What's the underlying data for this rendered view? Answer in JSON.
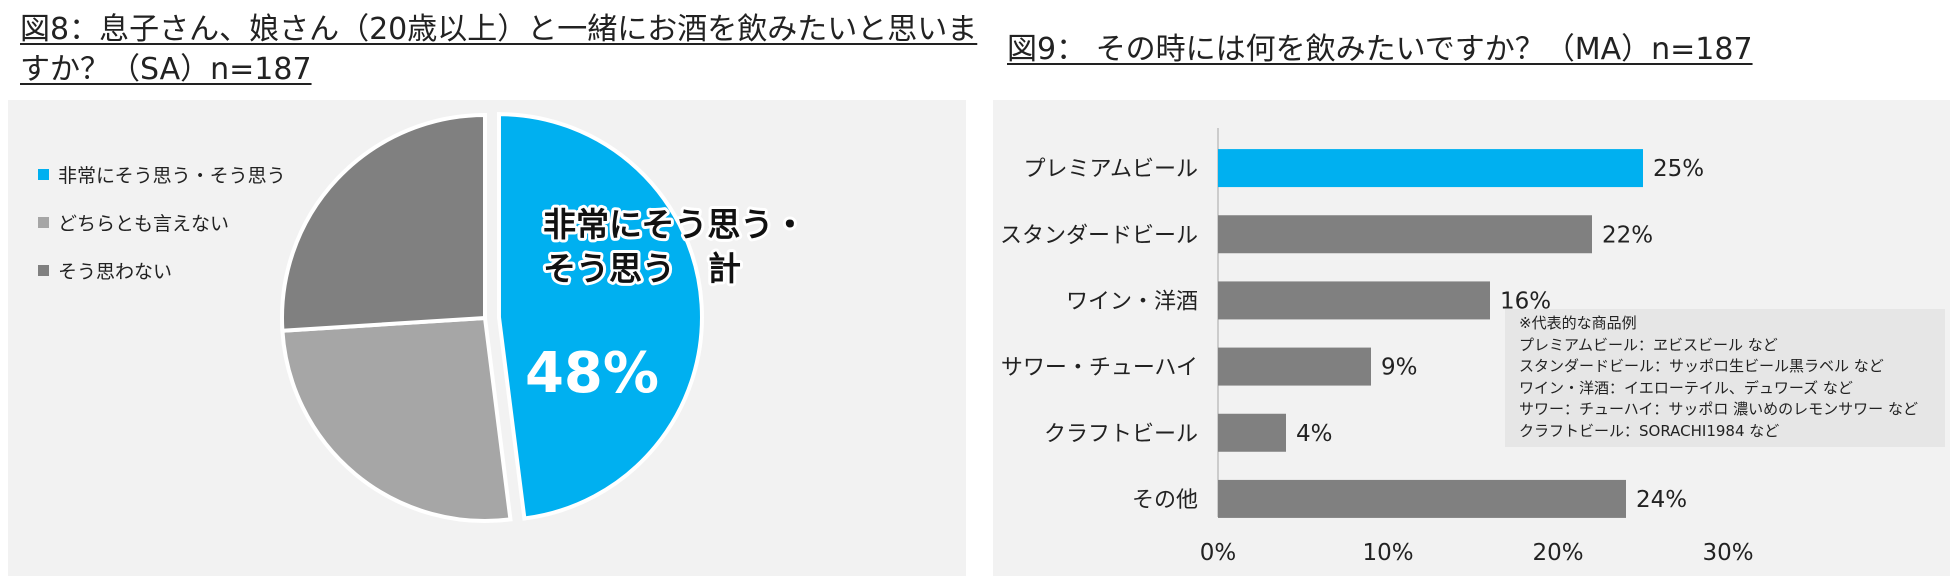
{
  "fig8": {
    "title": "図8：息子さん、娘さん（20歳以上）と一緒にお酒を飲みたいと思いますか？（SA）n=187",
    "callout_line1": "非常にそう思う・",
    "callout_line2": "そう思う　計",
    "callout_value": "48%"
  },
  "fig9": {
    "title": "図9：  その時には何を飲みたいですか？（MA）n=187",
    "note": {
      "heading": "※代表的な商品例",
      "lines": [
        "プレミアムビール：ヱビスビール など",
        "スタンダードビール：サッポロ生ビール黒ラベル など",
        "ワイン・洋酒：イエローテイル、デュワーズ など",
        "サワー：チューハイ：サッポロ 濃いめのレモンサワー など",
        "クラフトビール：SORACHI1984 など"
      ]
    }
  },
  "chart_data": [
    {
      "type": "pie",
      "title": "図8：息子さん、娘さん（20歳以上）と一緒にお酒を飲みたいと思いますか？（SA）n=187",
      "categories": [
        "非常にそう思う・そう思う",
        "どちらとも言えない",
        "そう思わない"
      ],
      "values": [
        48,
        26,
        26
      ],
      "colors": [
        "#00b0f0",
        "#a6a6a6",
        "#808080"
      ],
      "legend": "left",
      "exploded_slice": 0,
      "annotation": "非常にそう思う・そう思う　計 48%"
    },
    {
      "type": "bar",
      "orientation": "horizontal",
      "title": "図9：  その時には何を飲みたいですか？（MA）n=187",
      "categories": [
        "プレミアムビール",
        "スタンダードビール",
        "ワイン・洋酒",
        "サワー・チューハイ",
        "クラフトビール",
        "その他"
      ],
      "values": [
        25,
        22,
        16,
        9,
        4,
        24
      ],
      "value_labels": [
        "25%",
        "22%",
        "16%",
        "9%",
        "4%",
        "24%"
      ],
      "colors": [
        "#00b0f0",
        "#808080",
        "#808080",
        "#808080",
        "#808080",
        "#808080"
      ],
      "xlim": [
        0,
        30
      ],
      "ticks": [
        "0%",
        "10%",
        "20%",
        "30%"
      ],
      "grid": false
    }
  ]
}
